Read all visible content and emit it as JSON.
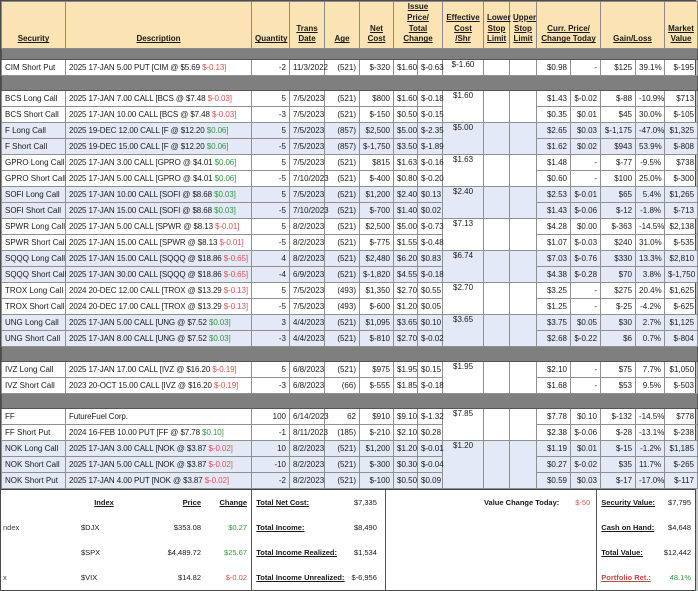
{
  "colors": {
    "positive": "#2f9b3e",
    "negative": "#e05252",
    "header_bg": "#fbe3b4",
    "shade_row_bg": "#e3e9f6",
    "divider": "#7f7f7f"
  },
  "header": {
    "cells": [
      {
        "id": "security",
        "label": "Security",
        "colspan": 1
      },
      {
        "id": "description",
        "label": "Description",
        "colspan": 1
      },
      {
        "id": "quantity",
        "label": "Quantity",
        "colspan": 1
      },
      {
        "id": "trans-date",
        "label": "Trans\nDate",
        "colspan": 1
      },
      {
        "id": "age",
        "label": "Age",
        "colspan": 1
      },
      {
        "id": "net-cost",
        "label": "Net\nCost",
        "colspan": 1
      },
      {
        "id": "issue-price-total-change",
        "label": "Issue Price/\nTotal Change",
        "colspan": 2
      },
      {
        "id": "effective-cost-shr",
        "label": "Effective\nCost\n/Shr",
        "colspan": 1
      },
      {
        "id": "lower-stop-limit",
        "label": "Lower\nStop\nLimit",
        "colspan": 1
      },
      {
        "id": "upper-stop-limit",
        "label": "Upper\nStop\nLimit",
        "colspan": 1
      },
      {
        "id": "curr-price-change-today",
        "label": "Curr. Price/\nChange Today",
        "colspan": 2
      },
      {
        "id": "gain-loss",
        "label": "Gain/Loss",
        "colspan": 2
      },
      {
        "id": "market-value",
        "label": "Market\nValue",
        "colspan": 1
      }
    ]
  },
  "groups": [
    {
      "shade": false,
      "divider_before": "thin",
      "eff_cost": "$-1.60",
      "rows": [
        {
          "security": "CIM Short Put",
          "desc": "2025 17-JAN 5.00 PUT [CIM @ $5.69 ",
          "desc_change": "$-0.13]",
          "desc_dir": "down",
          "qty": "-2",
          "date": "11/3/2022",
          "age": "(521)",
          "net": "$-320",
          "issue": "$1.60",
          "tchg": "$-0.63",
          "tchg_dir": "down",
          "cprice": "$0.98",
          "ctoday": "-",
          "ctoday_dir": "flat",
          "gain": "$125",
          "gain_dir": "up",
          "losspct": "39.1%",
          "loss_dir": "up",
          "market": "$-195"
        }
      ]
    },
    {
      "shade": false,
      "divider_before": "thick",
      "eff_cost": "$1.60",
      "rows": [
        {
          "security": "BCS Long Call",
          "desc": "2025 17-JAN 7.00 CALL [BCS @ $7.48 ",
          "desc_change": "$-0.03]",
          "desc_dir": "down",
          "qty": "5",
          "date": "7/5/2023",
          "age": "(521)",
          "net": "$800",
          "issue": "$1.60",
          "tchg": "$-0.18",
          "tchg_dir": "down",
          "cprice": "$1.43",
          "ctoday": "$-0.02",
          "ctoday_dir": "down",
          "gain": "$-88",
          "gain_dir": "down",
          "losspct": "-10.9%",
          "loss_dir": "down",
          "market": "$713"
        },
        {
          "security": "BCS Short Call",
          "desc": "2025 17-JAN 10.00 CALL [BCS @ $7.48 ",
          "desc_change": "$-0.03]",
          "desc_dir": "down",
          "qty": "-3",
          "date": "7/5/2023",
          "age": "(521)",
          "net": "$-150",
          "issue": "$0.50",
          "tchg": "$-0.15",
          "tchg_dir": "down",
          "cprice": "$0.35",
          "ctoday": "$0.01",
          "ctoday_dir": "up",
          "gain": "$45",
          "gain_dir": "up",
          "losspct": "30.0%",
          "loss_dir": "up",
          "market": "$-105"
        }
      ]
    },
    {
      "shade": true,
      "divider_before": false,
      "eff_cost": "$5.00",
      "rows": [
        {
          "security": "F Long Call",
          "desc": "2025 19-DEC 12.00 CALL [F @ $12.20 ",
          "desc_change": "$0.06]",
          "desc_dir": "up",
          "qty": "5",
          "date": "7/5/2023",
          "age": "(857)",
          "net": "$2,500",
          "issue": "$5.00",
          "tchg": "$-2.35",
          "tchg_dir": "down",
          "cprice": "$2.65",
          "ctoday": "$0.03",
          "ctoday_dir": "up",
          "gain": "$-1,175",
          "gain_dir": "down",
          "losspct": "-47.0%",
          "loss_dir": "down",
          "market": "$1,325"
        },
        {
          "security": "F Short Call",
          "desc": "2025 19-DEC 15.00 CALL [F @ $12.20 ",
          "desc_change": "$0.06]",
          "desc_dir": "up",
          "qty": "-5",
          "date": "7/5/2023",
          "age": "(857)",
          "net": "$-1,750",
          "issue": "$3.50",
          "tchg": "$-1.89",
          "tchg_dir": "down",
          "cprice": "$1.62",
          "ctoday": "$0.02",
          "ctoday_dir": "up",
          "gain": "$943",
          "gain_dir": "up",
          "losspct": "53.9%",
          "loss_dir": "up",
          "market": "$-808"
        }
      ]
    },
    {
      "shade": false,
      "divider_before": false,
      "eff_cost": "$1.63",
      "rows": [
        {
          "security": "GPRO Long Call",
          "desc": "2025 17-JAN 3.00 CALL [GPRO @ $4.01 ",
          "desc_change": "$0.06]",
          "desc_dir": "up",
          "qty": "5",
          "date": "7/5/2023",
          "age": "(521)",
          "net": "$815",
          "issue": "$1.63",
          "tchg": "$-0.16",
          "tchg_dir": "down",
          "cprice": "$1.48",
          "ctoday": "-",
          "ctoday_dir": "flat",
          "gain": "$-77",
          "gain_dir": "down",
          "losspct": "-9.5%",
          "loss_dir": "down",
          "market": "$738"
        },
        {
          "security": "GPRO Short Call",
          "desc": "2025 17-JAN 5.00 CALL [GPRO @ $4.01 ",
          "desc_change": "$0.06]",
          "desc_dir": "up",
          "qty": "-5",
          "date": "7/10/2023",
          "age": "(521)",
          "net": "$-400",
          "issue": "$0.80",
          "tchg": "$-0.20",
          "tchg_dir": "down",
          "cprice": "$0.60",
          "ctoday": "-",
          "ctoday_dir": "flat",
          "gain": "$100",
          "gain_dir": "up",
          "losspct": "25.0%",
          "loss_dir": "up",
          "market": "$-300"
        }
      ]
    },
    {
      "shade": true,
      "divider_before": false,
      "eff_cost": "$2.40",
      "rows": [
        {
          "security": "SOFI Long Call",
          "desc": "2025 17-JAN 10.00 CALL [SOFI @ $8.68 ",
          "desc_change": "$0.03]",
          "desc_dir": "up",
          "qty": "5",
          "date": "7/5/2023",
          "age": "(521)",
          "net": "$1,200",
          "issue": "$2.40",
          "tchg": "$0.13",
          "tchg_dir": "up",
          "cprice": "$2.53",
          "ctoday": "$-0.01",
          "ctoday_dir": "down",
          "gain": "$65",
          "gain_dir": "up",
          "losspct": "5.4%",
          "loss_dir": "up",
          "market": "$1,265"
        },
        {
          "security": "SOFI Short Call",
          "desc": "2025 17-JAN 15.00 CALL [SOFI @ $8.68 ",
          "desc_change": "$0.03]",
          "desc_dir": "up",
          "qty": "-5",
          "date": "7/10/2023",
          "age": "(521)",
          "net": "$-700",
          "issue": "$1.40",
          "tchg": "$0.02",
          "tchg_dir": "up",
          "cprice": "$1.43",
          "ctoday": "$-0.06",
          "ctoday_dir": "down",
          "gain": "$-12",
          "gain_dir": "down",
          "losspct": "-1.8%",
          "loss_dir": "down",
          "market": "$-713"
        }
      ]
    },
    {
      "shade": false,
      "divider_before": false,
      "eff_cost": "$7.13",
      "rows": [
        {
          "security": "SPWR Long Call",
          "desc": "2025 17-JAN 5.00 CALL [SPWR @ $8.13 ",
          "desc_change": "$-0.01]",
          "desc_dir": "down",
          "qty": "5",
          "date": "8/2/2023",
          "age": "(521)",
          "net": "$2,500",
          "issue": "$5.00",
          "tchg": "$-0.73",
          "tchg_dir": "down",
          "cprice": "$4.28",
          "ctoday": "$0.00",
          "ctoday_dir": "up",
          "gain": "$-363",
          "gain_dir": "down",
          "losspct": "-14.5%",
          "loss_dir": "down",
          "market": "$2,138"
        },
        {
          "security": "SPWR Short Call",
          "desc": "2025 17-JAN 15.00 CALL [SPWR @ $8.13 ",
          "desc_change": "$-0.01]",
          "desc_dir": "down",
          "qty": "-5",
          "date": "8/2/2023",
          "age": "(521)",
          "net": "$-775",
          "issue": "$1.55",
          "tchg": "$-0.48",
          "tchg_dir": "down",
          "cprice": "$1.07",
          "ctoday": "$-0.03",
          "ctoday_dir": "down",
          "gain": "$240",
          "gain_dir": "up",
          "losspct": "31.0%",
          "loss_dir": "up",
          "market": "$-535"
        }
      ]
    },
    {
      "shade": true,
      "divider_before": false,
      "eff_cost": "$6.74",
      "rows": [
        {
          "security": "SQQQ Long Call",
          "desc": "2025 17-JAN 15.00 CALL [SQQQ @ $18.86 ",
          "desc_change": "$-0.65]",
          "desc_dir": "down",
          "qty": "4",
          "date": "8/2/2023",
          "age": "(521)",
          "net": "$2,480",
          "issue": "$6.20",
          "tchg": "$0.83",
          "tchg_dir": "up",
          "cprice": "$7.03",
          "ctoday": "$-0.76",
          "ctoday_dir": "down",
          "gain": "$330",
          "gain_dir": "up",
          "losspct": "13.3%",
          "loss_dir": "up",
          "market": "$2,810"
        },
        {
          "security": "SQQQ Short Call",
          "desc": "2025 17-JAN 30.00 CALL [SQQQ @ $18.86 ",
          "desc_change": "$-0.65]",
          "desc_dir": "down",
          "qty": "-4",
          "date": "6/9/2023",
          "age": "(521)",
          "net": "$-1,820",
          "issue": "$4.55",
          "tchg": "$-0.18",
          "tchg_dir": "down",
          "cprice": "$4.38",
          "ctoday": "$-0.28",
          "ctoday_dir": "down",
          "gain": "$70",
          "gain_dir": "up",
          "losspct": "3.8%",
          "loss_dir": "up",
          "market": "$-1,750"
        }
      ]
    },
    {
      "shade": false,
      "divider_before": false,
      "eff_cost": "$2.70",
      "rows": [
        {
          "security": "TROX Long Call",
          "desc": "2024 20-DEC 12.00 CALL [TROX @ $13.29 ",
          "desc_change": "$-0.13]",
          "desc_dir": "down",
          "qty": "5",
          "date": "7/5/2023",
          "age": "(493)",
          "net": "$1,350",
          "issue": "$2.70",
          "tchg": "$0.55",
          "tchg_dir": "up",
          "cprice": "$3.25",
          "ctoday": "-",
          "ctoday_dir": "flat",
          "gain": "$275",
          "gain_dir": "up",
          "losspct": "20.4%",
          "loss_dir": "up",
          "market": "$1,625"
        },
        {
          "security": "TROX Short Call",
          "desc": "2024 20-DEC 17.00 CALL [TROX @ $13.29 ",
          "desc_change": "$-0.13]",
          "desc_dir": "down",
          "qty": "-5",
          "date": "7/5/2023",
          "age": "(493)",
          "net": "$-600",
          "issue": "$1.20",
          "tchg": "$0.05",
          "tchg_dir": "up",
          "cprice": "$1.25",
          "ctoday": "-",
          "ctoday_dir": "flat",
          "gain": "$-25",
          "gain_dir": "down",
          "losspct": "-4.2%",
          "loss_dir": "down",
          "market": "$-625"
        }
      ]
    },
    {
      "shade": true,
      "divider_before": false,
      "eff_cost": "$3.65",
      "rows": [
        {
          "security": "UNG Long Call",
          "desc": "2025 17-JAN 5.00 CALL [UNG @ $7.52 ",
          "desc_change": "$0.03]",
          "desc_dir": "up",
          "qty": "3",
          "date": "4/4/2023",
          "age": "(521)",
          "net": "$1,095",
          "issue": "$3.65",
          "tchg": "$0.10",
          "tchg_dir": "up",
          "cprice": "$3.75",
          "ctoday": "$0.05",
          "ctoday_dir": "up",
          "gain": "$30",
          "gain_dir": "up",
          "losspct": "2.7%",
          "loss_dir": "up",
          "market": "$1,125"
        },
        {
          "security": "UNG Short Call",
          "desc": "2025 17-JAN 8.00 CALL [UNG @ $7.52 ",
          "desc_change": "$0.03]",
          "desc_dir": "up",
          "qty": "-3",
          "date": "4/4/2023",
          "age": "(521)",
          "net": "$-810",
          "issue": "$2.70",
          "tchg": "$-0.02",
          "tchg_dir": "down",
          "cprice": "$2.68",
          "ctoday": "$-0.22",
          "ctoday_dir": "down",
          "gain": "$6",
          "gain_dir": "up",
          "losspct": "0.7%",
          "loss_dir": "up",
          "market": "$-804"
        }
      ]
    },
    {
      "shade": false,
      "divider_before": "thick",
      "eff_cost": "$1.95",
      "rows": [
        {
          "security": "IVZ Long Call",
          "desc": "2025 17-JAN 17.00 CALL [IVZ @ $16.20 ",
          "desc_change": "$-0.19]",
          "desc_dir": "down",
          "qty": "5",
          "date": "6/8/2023",
          "age": "(521)",
          "net": "$975",
          "issue": "$1.95",
          "tchg": "$0.15",
          "tchg_dir": "up",
          "cprice": "$2.10",
          "ctoday": "-",
          "ctoday_dir": "flat",
          "gain": "$75",
          "gain_dir": "up",
          "losspct": "7.7%",
          "loss_dir": "up",
          "market": "$1,050"
        },
        {
          "security": "IVZ Short Call",
          "desc": "2023 20-OCT 15.00 CALL [IVZ @ $16.20 ",
          "desc_change": "$-0.19]",
          "desc_dir": "down",
          "qty": "-3",
          "date": "6/8/2023",
          "age": "(66)",
          "net": "$-555",
          "issue": "$1.85",
          "tchg": "$-0.18",
          "tchg_dir": "down",
          "cprice": "$1.68",
          "ctoday": "-",
          "ctoday_dir": "flat",
          "gain": "$53",
          "gain_dir": "up",
          "losspct": "9.5%",
          "loss_dir": "up",
          "market": "$-503"
        }
      ]
    },
    {
      "shade": false,
      "divider_before": "thick",
      "eff_cost": "$7.85",
      "rows": [
        {
          "security": "FF",
          "desc": "FutureFuel Corp.",
          "desc_change": "",
          "desc_dir": "",
          "qty": "100",
          "date": "6/14/2023",
          "age": "62",
          "net": "$910",
          "issue": "$9.10",
          "tchg": "$-1.32",
          "tchg_dir": "down",
          "cprice": "$7.78",
          "ctoday": "$0.10",
          "ctoday_dir": "up",
          "gain": "$-132",
          "gain_dir": "down",
          "losspct": "-14.5%",
          "loss_dir": "down",
          "market": "$778"
        },
        {
          "security": "FF Short Put",
          "desc": "2024 16-FEB 10.00 PUT [FF @ $7.78 ",
          "desc_change": "$0.10]",
          "desc_dir": "up",
          "qty": "-1",
          "date": "8/11/2023",
          "age": "(185)",
          "net": "$-210",
          "issue": "$2.10",
          "tchg": "$0.28",
          "tchg_dir": "up",
          "cprice": "$2.38",
          "ctoday": "$-0.06",
          "ctoday_dir": "down",
          "gain": "$-28",
          "gain_dir": "down",
          "losspct": "-13.1%",
          "loss_dir": "down",
          "market": "$-238"
        }
      ]
    },
    {
      "shade": true,
      "divider_before": false,
      "eff_cost": "$1.20",
      "rows": [
        {
          "security": "NOK Long Call",
          "desc": "2025 17-JAN 3.00 CALL [NOK @ $3.87 ",
          "desc_change": "$-0.02]",
          "desc_dir": "down",
          "qty": "10",
          "date": "8/2/2023",
          "age": "(521)",
          "net": "$1,200",
          "issue": "$1.20",
          "tchg": "$-0.01",
          "tchg_dir": "down",
          "cprice": "$1.19",
          "ctoday": "$0.01",
          "ctoday_dir": "up",
          "gain": "$-15",
          "gain_dir": "down",
          "losspct": "-1.2%",
          "loss_dir": "down",
          "market": "$1,185"
        },
        {
          "security": "NOK Short Call",
          "desc": "2025 17-JAN 5.00 CALL [NOK @ $3.87 ",
          "desc_change": "$-0.02]",
          "desc_dir": "down",
          "qty": "-10",
          "date": "8/2/2023",
          "age": "(521)",
          "net": "$-300",
          "issue": "$0.30",
          "tchg": "$-0.04",
          "tchg_dir": "down",
          "cprice": "$0.27",
          "ctoday": "$-0.02",
          "ctoday_dir": "down",
          "gain": "$35",
          "gain_dir": "up",
          "losspct": "11.7%",
          "loss_dir": "up",
          "market": "$-265"
        },
        {
          "security": "NOK Short Put",
          "desc": "2025 17-JAN 4.00 PUT [NOK @ $3.87 ",
          "desc_change": "$-0.02]",
          "desc_dir": "down",
          "qty": "-2",
          "date": "8/2/2023",
          "age": "(521)",
          "net": "$-100",
          "issue": "$0.50",
          "tchg": "$0.09",
          "tchg_dir": "up",
          "cprice": "$0.59",
          "ctoday": "$0.03",
          "ctoday_dir": "up",
          "gain": "$-17",
          "gain_dir": "down",
          "losspct": "-17.0%",
          "loss_dir": "down",
          "market": "$-117"
        }
      ]
    }
  ],
  "summary": {
    "index_table": {
      "headers": {
        "index": "Index",
        "price": "Price",
        "change": "Change"
      },
      "rows": [
        {
          "fragment": "ndex",
          "index": "$DJX",
          "price": "$353.08",
          "change": "$0.27",
          "dir": "up"
        },
        {
          "fragment": "",
          "index": "$SPX",
          "price": "$4,489.72",
          "change": "$25.67",
          "dir": "up"
        },
        {
          "fragment": "x",
          "index": "$VIX",
          "price": "$14.82",
          "change": "$-0.02",
          "dir": "down"
        }
      ]
    },
    "totals": [
      {
        "label": "Total Net Cost:",
        "value": "$7,335"
      },
      {
        "label": "Total Income:",
        "value": "$8,490"
      },
      {
        "label": "Total Income Realized:",
        "value": "$1,534"
      },
      {
        "label": "Total Income Unrealized:",
        "value": "$-6,956"
      }
    ],
    "value_change_today": {
      "label": "Value Change Today:",
      "value": "$-50",
      "dir": "down"
    },
    "portfolio": [
      {
        "label": "Security Value:",
        "value": "$7,795",
        "label_red": false,
        "value_dir": ""
      },
      {
        "label": "Cash on Hand:",
        "value": "$4,648",
        "label_red": false,
        "value_dir": ""
      },
      {
        "label": "Total Value:",
        "value": "$12,442",
        "label_red": false,
        "value_dir": ""
      },
      {
        "label": "Portfolio Ret.:",
        "value": "48.1%",
        "label_red": true,
        "value_dir": "up"
      }
    ]
  }
}
